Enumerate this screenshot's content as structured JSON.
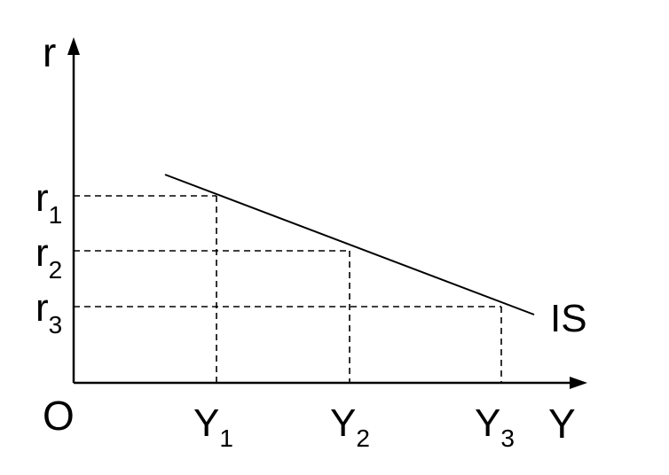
{
  "labels": {
    "y_axis": "r",
    "x_axis": "Y",
    "origin": "O",
    "curve": "IS",
    "r_base": "r",
    "y_base": "Y",
    "r_subscripts": [
      "1",
      "2",
      "3"
    ],
    "y_subscripts": [
      "1",
      "2",
      "3"
    ]
  },
  "colors": {
    "line": "#000000",
    "background": "#ffffff"
  }
}
